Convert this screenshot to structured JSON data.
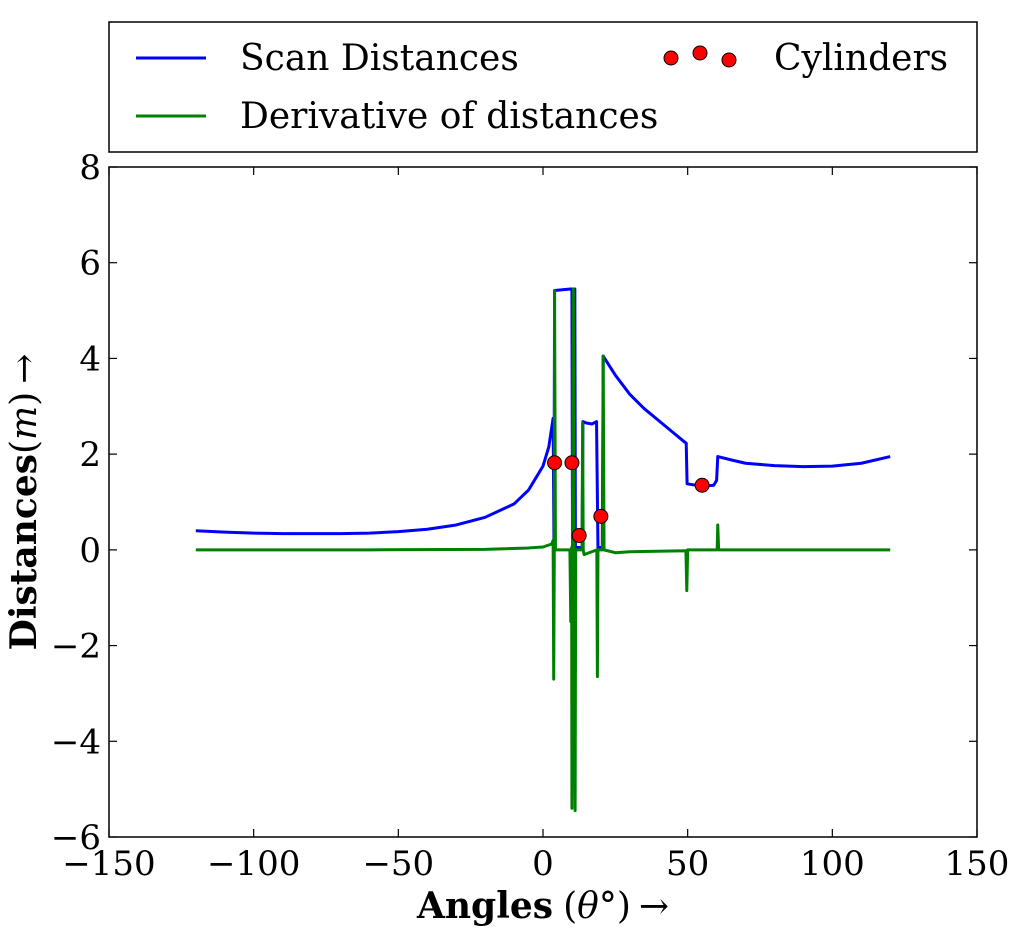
{
  "chart_data": {
    "type": "line",
    "title": "",
    "xlabel": {
      "main": "Angles",
      "open": "(",
      "symbol": "θ",
      "degree": "°",
      "close": ")",
      "arrow": "→"
    },
    "ylabel": {
      "main": "Distances",
      "open": "(",
      "symbol": "m",
      "close": ")",
      "arrow": "→"
    },
    "xlim": [
      -150,
      150
    ],
    "ylim": [
      -6,
      8
    ],
    "xticks": [
      -150,
      -100,
      -50,
      0,
      50,
      100,
      150
    ],
    "xtick_labels": [
      "−150",
      "−100",
      "−50",
      "0",
      "50",
      "100",
      "150"
    ],
    "yticks": [
      -6,
      -4,
      -2,
      0,
      2,
      4,
      6,
      8
    ],
    "ytick_labels": [
      "−6",
      "−4",
      "−2",
      "0",
      "2",
      "4",
      "6",
      "8"
    ],
    "grid": false,
    "legend_position": "top, outside plot",
    "colors": {
      "scan": "#0000ff",
      "derivative": "#008000",
      "cylinders": "#ff0000"
    },
    "series": [
      {
        "name": "Scan Distances",
        "color": "#0000ff",
        "points": [
          [
            -120,
            0.4
          ],
          [
            -110,
            0.37
          ],
          [
            -100,
            0.35
          ],
          [
            -90,
            0.34
          ],
          [
            -80,
            0.34
          ],
          [
            -70,
            0.34
          ],
          [
            -60,
            0.35
          ],
          [
            -50,
            0.38
          ],
          [
            -40,
            0.43
          ],
          [
            -30,
            0.52
          ],
          [
            -20,
            0.68
          ],
          [
            -10,
            0.96
          ],
          [
            -5,
            1.25
          ],
          [
            0,
            1.75
          ],
          [
            2,
            2.15
          ],
          [
            3.5,
            2.75
          ],
          [
            3.8,
            0.05
          ],
          [
            4.0,
            5.42
          ],
          [
            9.5,
            5.45
          ],
          [
            10.0,
            5.45
          ],
          [
            10.2,
            0.05
          ],
          [
            10.6,
            5.45
          ],
          [
            11.0,
            5.45
          ],
          [
            11.2,
            0.05
          ],
          [
            13.5,
            0.05
          ],
          [
            13.8,
            2.68
          ],
          [
            15,
            2.65
          ],
          [
            17,
            2.63
          ],
          [
            18.5,
            2.68
          ],
          [
            19,
            0.05
          ],
          [
            20.5,
            0.05
          ],
          [
            20.8,
            4.05
          ],
          [
            25,
            3.65
          ],
          [
            30,
            3.25
          ],
          [
            35,
            2.95
          ],
          [
            40,
            2.7
          ],
          [
            45,
            2.45
          ],
          [
            49,
            2.25
          ],
          [
            49.5,
            2.23
          ],
          [
            49.8,
            1.38
          ],
          [
            55,
            1.33
          ],
          [
            59,
            1.35
          ],
          [
            60,
            1.45
          ],
          [
            60.4,
            1.95
          ],
          [
            65,
            1.88
          ],
          [
            70,
            1.81
          ],
          [
            80,
            1.76
          ],
          [
            90,
            1.74
          ],
          [
            100,
            1.75
          ],
          [
            110,
            1.81
          ],
          [
            120,
            1.95
          ]
        ]
      },
      {
        "name": "Derivative of distances",
        "color": "#008000",
        "points": [
          [
            -120,
            0.0
          ],
          [
            -60,
            0.0
          ],
          [
            -20,
            0.01
          ],
          [
            -5,
            0.04
          ],
          [
            0,
            0.06
          ],
          [
            3,
            0.12
          ],
          [
            3.5,
            0.2
          ],
          [
            3.7,
            -2.7
          ],
          [
            3.9,
            0.0
          ],
          [
            4.0,
            5.42
          ],
          [
            4.3,
            0.0
          ],
          [
            9.3,
            0.0
          ],
          [
            9.6,
            -1.5
          ],
          [
            9.9,
            0.05
          ],
          [
            10.0,
            -5.4
          ],
          [
            10.2,
            0.0
          ],
          [
            10.5,
            5.45
          ],
          [
            10.7,
            0.0
          ],
          [
            11.1,
            -5.45
          ],
          [
            11.3,
            0.0
          ],
          [
            13.5,
            0.0
          ],
          [
            13.7,
            2.65
          ],
          [
            13.9,
            0.0
          ],
          [
            14.2,
            -0.1
          ],
          [
            18.6,
            0.0
          ],
          [
            18.8,
            -2.65
          ],
          [
            19.0,
            0.0
          ],
          [
            20.6,
            0.0
          ],
          [
            20.8,
            4.05
          ],
          [
            21.1,
            0.0
          ],
          [
            25,
            -0.06
          ],
          [
            30,
            -0.04
          ],
          [
            49.4,
            -0.02
          ],
          [
            49.7,
            -0.85
          ],
          [
            50.0,
            0.0
          ],
          [
            60.2,
            0.0
          ],
          [
            60.4,
            0.52
          ],
          [
            60.7,
            0.0
          ],
          [
            90,
            0.0
          ],
          [
            120,
            0.0
          ]
        ]
      }
    ],
    "scatter": {
      "name": "Cylinders",
      "color": "#ff0000",
      "points": [
        [
          4.0,
          1.82
        ],
        [
          10.0,
          1.82
        ],
        [
          12.5,
          0.3
        ],
        [
          20.0,
          0.7
        ],
        [
          55.0,
          1.35
        ]
      ]
    }
  }
}
